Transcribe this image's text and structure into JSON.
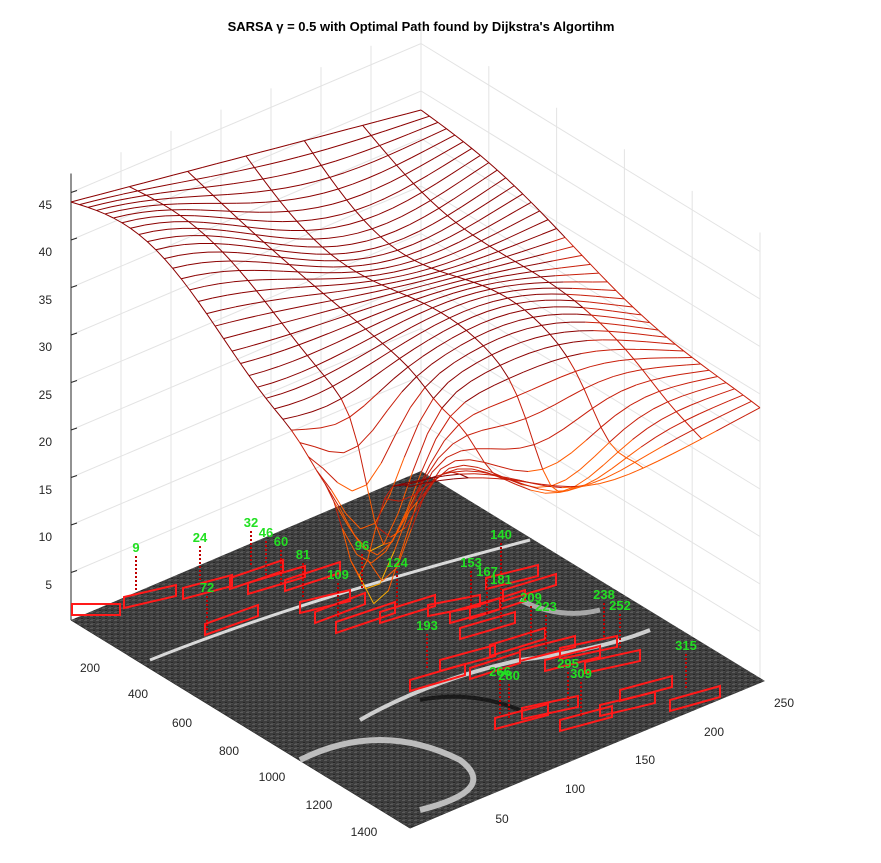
{
  "chart_data": {
    "type": "surface",
    "title": "SARSA γ = 0.5 with Optimal Path found by Dijkstra's Algortihm",
    "zlabel_ticks": [
      5,
      10,
      15,
      20,
      25,
      30,
      35,
      40,
      45
    ],
    "xaxis_ticks": [
      200,
      400,
      600,
      800,
      1000,
      1200,
      1400
    ],
    "yaxis_ticks": [
      50,
      100,
      150,
      200,
      250
    ],
    "zlim": [
      0,
      47
    ],
    "grid": true,
    "waypoints": [
      {
        "label": "9"
      },
      {
        "label": "24"
      },
      {
        "label": "32"
      },
      {
        "label": "46"
      },
      {
        "label": "60"
      },
      {
        "label": "72"
      },
      {
        "label": "81"
      },
      {
        "label": "96"
      },
      {
        "label": "109"
      },
      {
        "label": "124"
      },
      {
        "label": "140"
      },
      {
        "label": "153"
      },
      {
        "label": "167"
      },
      {
        "label": "181"
      },
      {
        "label": "193"
      },
      {
        "label": "209"
      },
      {
        "label": "223"
      },
      {
        "label": "238"
      },
      {
        "label": "252"
      },
      {
        "label": "266"
      },
      {
        "label": "280"
      },
      {
        "label": "295"
      },
      {
        "label": "309"
      },
      {
        "label": "315"
      }
    ],
    "colors": {
      "surface_high": "#8b0000",
      "surface_mid": "#ff8c00",
      "surface_low": "#1e40ff",
      "path": "#ff1a1a",
      "label": "#22e022"
    }
  }
}
